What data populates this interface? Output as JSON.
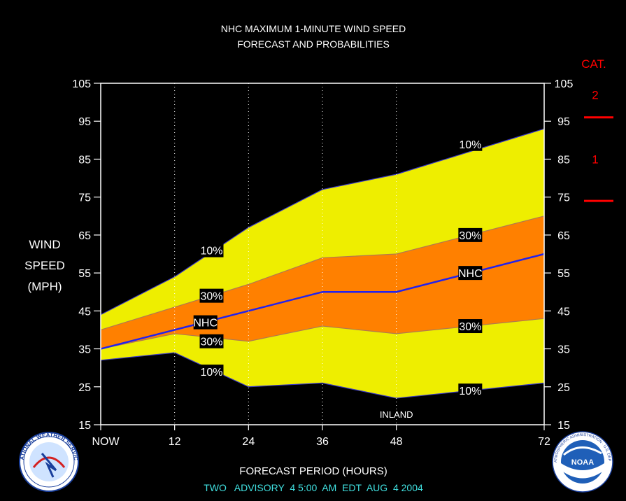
{
  "header": {
    "title_line1": "NHC MAXIMUM 1-MINUTE WIND SPEED",
    "title_line2": "FORECAST AND PROBABILITIES"
  },
  "y_axis_label": [
    "WIND",
    "SPEED",
    "(MPH)"
  ],
  "x_axis_label": "FORECAST PERIOD (HOURS)",
  "footer": "TWO   ADVISORY  4 5:00  AM  EDT  AUG  4 2004",
  "category_scale": {
    "title": "CAT.",
    "labels": [
      {
        "text": "2",
        "y": 102
      },
      {
        "text": "1",
        "y": 85
      }
    ],
    "thresholds": [
      96,
      74
    ]
  },
  "annotations": {
    "inland": "INLAND",
    "inland_x": 48
  },
  "logos": {
    "left": "NATIONAL WEATHER SERVICE",
    "right": "NOAA",
    "right_ring": "NATIONAL OCEANIC AND ATMOSPHERIC ADMINISTRATION · U.S. DEPARTMENT OF COMMERCE"
  },
  "colors": {
    "band_10": "#eeee00",
    "band_30": "#ff8000",
    "nhc_line": "#2222ee",
    "category_marks": "#ff0000",
    "footer_text": "#40e0e0"
  },
  "chart_data": {
    "type": "area",
    "xlabel": "FORECAST PERIOD (HOURS)",
    "ylabel": "WIND SPEED (MPH)",
    "x_tick_labels": [
      "NOW",
      "12",
      "24",
      "36",
      "48",
      "72"
    ],
    "x_ticks": [
      0,
      12,
      24,
      36,
      48,
      72
    ],
    "xlim": [
      0,
      72
    ],
    "ylim": [
      15,
      105
    ],
    "y_ticks": [
      15,
      25,
      35,
      45,
      55,
      65,
      75,
      85,
      95,
      105
    ],
    "x": [
      0,
      12,
      24,
      36,
      48,
      60,
      72
    ],
    "series": [
      {
        "name": "10%",
        "values": [
          32,
          34,
          25,
          26,
          22,
          24,
          26
        ]
      },
      {
        "name": "30%",
        "values": [
          35,
          39,
          37,
          41,
          39,
          41,
          43
        ]
      },
      {
        "name": "NHC",
        "values": [
          35,
          40,
          45,
          50,
          50,
          55,
          60
        ]
      },
      {
        "name": "30%",
        "values": [
          40,
          46,
          52,
          59,
          60,
          65,
          70
        ]
      },
      {
        "name": "10%",
        "values": [
          44,
          54,
          67,
          77,
          81,
          87,
          93
        ]
      }
    ],
    "labels": [
      {
        "text": "10%",
        "x": 18,
        "y": 61
      },
      {
        "text": "30%",
        "x": 18,
        "y": 49
      },
      {
        "text": "NHC",
        "x": 17,
        "y": 42
      },
      {
        "text": "30%",
        "x": 18,
        "y": 37
      },
      {
        "text": "10%",
        "x": 18,
        "y": 29
      },
      {
        "text": "10%",
        "x": 60,
        "y": 89
      },
      {
        "text": "30%",
        "x": 60,
        "y": 65
      },
      {
        "text": "NHC",
        "x": 60,
        "y": 55
      },
      {
        "text": "30%",
        "x": 60,
        "y": 41
      },
      {
        "text": "10%",
        "x": 60,
        "y": 24
      }
    ]
  }
}
